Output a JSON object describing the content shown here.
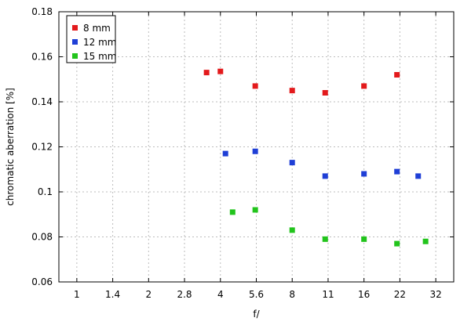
{
  "chart_data": {
    "type": "scatter",
    "xlabel": "f/",
    "ylabel": "chromatic aberration [%]",
    "x_axis_scale": "log2",
    "x_ticks": [
      "1",
      "1.4",
      "2",
      "2.8",
      "4",
      "5.6",
      "8",
      "11",
      "16",
      "22",
      "32"
    ],
    "ylim": [
      0.06,
      0.18
    ],
    "y_ticks": [
      "0.06",
      "0.08",
      "0.1",
      "0.12",
      "0.14",
      "0.16",
      "0.18"
    ],
    "grid": true,
    "legend_position": "top-left",
    "series": [
      {
        "name": "8 mm",
        "color": "#e31a1c",
        "points": [
          {
            "x": 3.5,
            "y": 0.153
          },
          {
            "x": 4.0,
            "y": 0.1535
          },
          {
            "x": 5.6,
            "y": 0.147
          },
          {
            "x": 8.0,
            "y": 0.145
          },
          {
            "x": 11.0,
            "y": 0.144
          },
          {
            "x": 16.0,
            "y": 0.147
          },
          {
            "x": 22.0,
            "y": 0.152
          }
        ]
      },
      {
        "name": "12 mm",
        "color": "#1f3fd6",
        "points": [
          {
            "x": 4.2,
            "y": 0.117
          },
          {
            "x": 5.6,
            "y": 0.118
          },
          {
            "x": 8.0,
            "y": 0.113
          },
          {
            "x": 11.0,
            "y": 0.107
          },
          {
            "x": 16.0,
            "y": 0.108
          },
          {
            "x": 22.0,
            "y": 0.109
          },
          {
            "x": 27.0,
            "y": 0.107
          }
        ]
      },
      {
        "name": "15 mm",
        "color": "#22c41c",
        "points": [
          {
            "x": 4.5,
            "y": 0.091
          },
          {
            "x": 5.6,
            "y": 0.092
          },
          {
            "x": 8.0,
            "y": 0.083
          },
          {
            "x": 11.0,
            "y": 0.079
          },
          {
            "x": 16.0,
            "y": 0.079
          },
          {
            "x": 22.0,
            "y": 0.077
          },
          {
            "x": 29.0,
            "y": 0.078
          }
        ]
      }
    ]
  }
}
